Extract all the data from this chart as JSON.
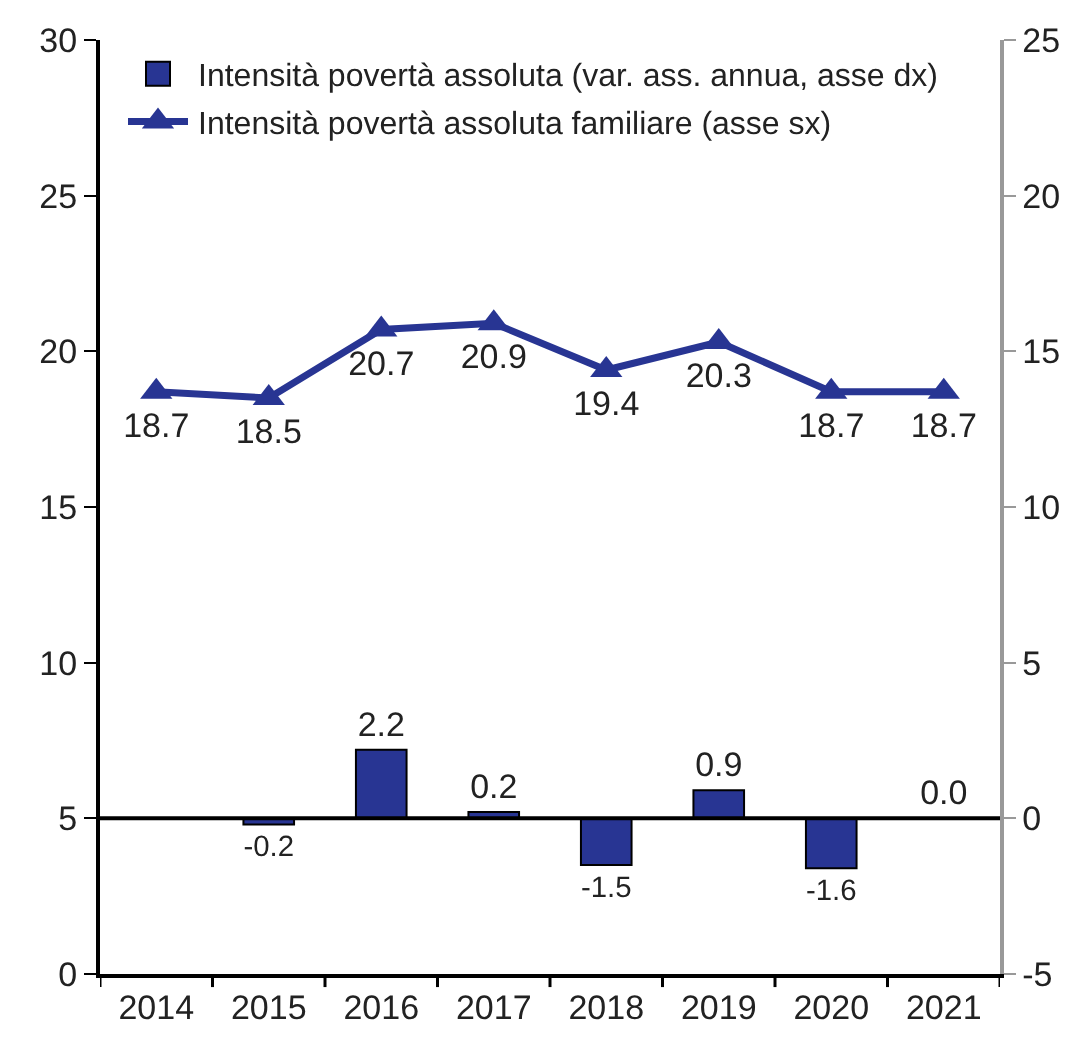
{
  "chart_data": {
    "type": "bar",
    "categories": [
      "2014",
      "2015",
      "2016",
      "2017",
      "2018",
      "2019",
      "2020",
      "2021"
    ],
    "series": [
      {
        "name": "Intensità povertà assoluta (var. ass. annua, asse dx)",
        "axis": "y2",
        "color": "#283593",
        "values": [
          null,
          -0.2,
          2.2,
          0.2,
          -1.5,
          0.9,
          -1.6,
          0.0
        ],
        "value_labels": [
          null,
          "-0.2",
          "2.2",
          "0.2",
          "-1.5",
          "0.9",
          "-1.6",
          "0.0"
        ]
      },
      {
        "name": "Intensità povertà assoluta familiare (asse sx)",
        "type": "line",
        "color": "#283593",
        "marker": "triangle",
        "values": [
          18.7,
          18.5,
          20.7,
          20.9,
          19.4,
          20.3,
          18.7,
          18.7
        ],
        "value_labels": [
          "18.7",
          "18.5",
          "20.7",
          "20.9",
          "19.4",
          "20.3",
          "18.7",
          "18.7"
        ]
      }
    ],
    "ylim": [
      0,
      30
    ],
    "yticks": [
      0,
      5,
      10,
      15,
      20,
      25,
      30
    ],
    "y2lim": [
      -5,
      25
    ],
    "y2ticks": [
      -5,
      0,
      5,
      10,
      15,
      20,
      25
    ],
    "ref_lines": [
      {
        "axis": "y2",
        "value": 0,
        "color": "#000000"
      }
    ],
    "legend": "top left",
    "grid": false
  }
}
